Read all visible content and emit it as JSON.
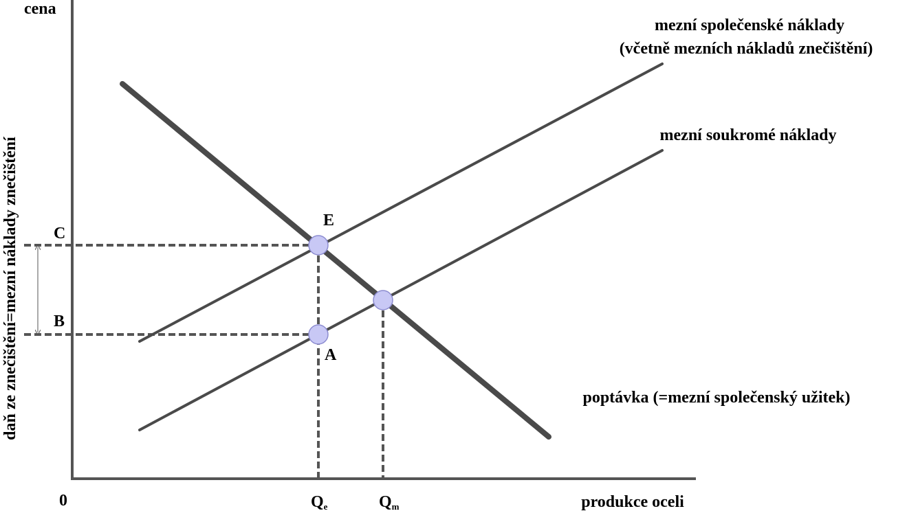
{
  "axes": {
    "y_top": "cena",
    "y_label": "daň ze znečištění=mezní náklady znečištění",
    "origin": "0",
    "x_label": "produkce oceli"
  },
  "curves": {
    "social_cost": [
      "mezní společenské náklady",
      "(včetně mezních nákladů znečištění)"
    ],
    "private_cost": "mezní soukromé náklady",
    "demand": "poptávka (=mezní společenský užitek)"
  },
  "points": {
    "C": "C",
    "B": "B",
    "E": "E",
    "A": "A"
  },
  "quantities": {
    "qe": {
      "letter": "Q",
      "subscript": "e"
    },
    "qm": {
      "letter": "Q",
      "subscript": "m"
    }
  }
}
